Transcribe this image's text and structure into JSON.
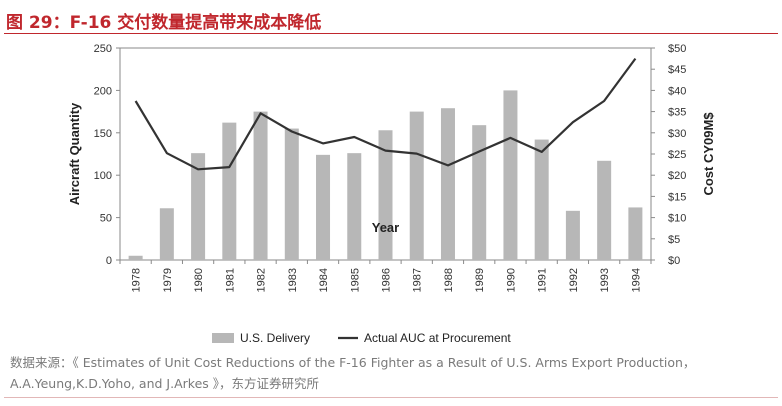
{
  "header": {
    "figure_title": "图 29：F-16 交付数量提高带来成本降低"
  },
  "chart_data": {
    "type": "bar",
    "title": "图 29：F-16 交付数量提高带来成本降低",
    "xlabel": "Year",
    "ylabel": "Aircraft Quantity",
    "y2label": "Cost CY09M$",
    "categories": [
      "1978",
      "1979",
      "1980",
      "1981",
      "1982",
      "1983",
      "1984",
      "1985",
      "1986",
      "1987",
      "1988",
      "1989",
      "1990",
      "1991",
      "1992",
      "1993",
      "1994"
    ],
    "ylim": [
      0,
      250
    ],
    "yticks": [
      0,
      50,
      100,
      150,
      200,
      250
    ],
    "y2lim": [
      0,
      50
    ],
    "y2ticks": [
      "$0",
      "$5",
      "$10",
      "$15",
      "$20",
      "$25",
      "$30",
      "$35",
      "$40",
      "$45",
      "$50"
    ],
    "series": [
      {
        "name": "U.S. Delivery",
        "type": "bar",
        "axis": "left",
        "color": "#b7b7b7",
        "values": [
          5,
          61,
          126,
          162,
          175,
          155,
          124,
          126,
          153,
          175,
          179,
          159,
          200,
          142,
          58,
          117,
          62
        ]
      },
      {
        "name": "Actual AUC at Procurement",
        "type": "line",
        "axis": "right",
        "color": "#333333",
        "values": [
          37.5,
          25.2,
          21.4,
          21.9,
          34.6,
          30.3,
          27.5,
          29.0,
          25.8,
          25.1,
          22.3,
          25.6,
          28.8,
          25.5,
          32.5,
          37.5,
          47.5
        ]
      }
    ],
    "legend": {
      "position": "bottom",
      "items": [
        "U.S. Delivery",
        "Actual AUC at Procurement"
      ]
    },
    "grid": false
  },
  "footer": {
    "source_text": "数据来源：《 Estimates of Unit Cost Reductions of the F-16 Fighter as a Result of U.S. Arms Export Production，A.A.Yeung,K.D.Yoho, and J.Arkes 》，东方证券研究所"
  }
}
